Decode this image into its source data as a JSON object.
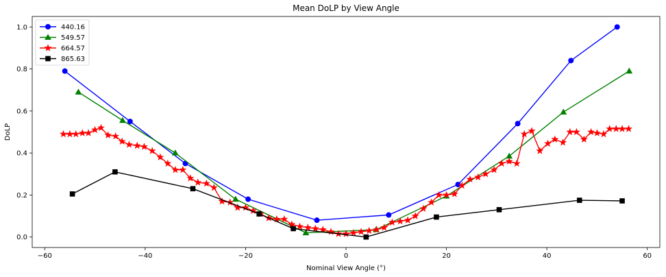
{
  "chart_data": {
    "type": "line",
    "title": "Mean DoLP by View Angle",
    "xlabel": "Nominal View Angle (°)",
    "ylabel": "DoLP",
    "xlim": [
      -62.5,
      62.5
    ],
    "ylim": [
      -0.05,
      1.05
    ],
    "xticks": [
      -60,
      -40,
      -20,
      0,
      20,
      40,
      60
    ],
    "yticks": [
      0.0,
      0.2,
      0.4,
      0.6,
      0.8,
      1.0
    ],
    "xtick_labels": [
      "−60",
      "−40",
      "−20",
      "0",
      "20",
      "40",
      "60"
    ],
    "ytick_labels": [
      "0.0",
      "0.2",
      "0.4",
      "0.6",
      "0.8",
      "1.0"
    ],
    "grid": false,
    "legend_position": "top-left",
    "series": [
      {
        "name": "440.16",
        "color": "#0000ff",
        "marker": "circle",
        "x": [
          -56.0,
          -43.0,
          -32.0,
          -19.5,
          -5.8,
          8.5,
          22.3,
          34.2,
          44.8,
          54.0
        ],
        "y": [
          0.79,
          0.55,
          0.35,
          0.18,
          0.08,
          0.105,
          0.25,
          0.54,
          0.84,
          1.0
        ]
      },
      {
        "name": "549.57",
        "color": "#008000",
        "marker": "triangle",
        "x": [
          -53.3,
          -44.5,
          -34.0,
          -22.0,
          -8.0,
          6.0,
          20.0,
          32.5,
          43.3,
          56.4
        ],
        "y": [
          0.69,
          0.555,
          0.4,
          0.18,
          0.02,
          0.035,
          0.195,
          0.385,
          0.595,
          0.79
        ]
      },
      {
        "name": "664.57",
        "color": "#ff0000",
        "marker": "star",
        "x": [
          -56.3,
          -55.0,
          -53.8,
          -52.5,
          -51.3,
          -50.0,
          -48.8,
          -47.4,
          -45.9,
          -44.6,
          -43.2,
          -41.6,
          -40.2,
          -38.6,
          -37.0,
          -35.5,
          -34.0,
          -32.5,
          -31.0,
          -29.5,
          -27.8,
          -26.3,
          -24.7,
          -23.1,
          -21.6,
          -20.0,
          -18.5,
          -17.0,
          -15.4,
          -13.8,
          -12.3,
          -10.8,
          -9.2,
          -7.6,
          -6.1,
          -4.6,
          -3.0,
          -1.5,
          0.0,
          1.5,
          3.0,
          4.6,
          6.1,
          7.6,
          9.2,
          10.8,
          12.3,
          13.8,
          15.4,
          17.0,
          18.5,
          20.0,
          21.6,
          23.1,
          24.7,
          26.3,
          27.8,
          29.5,
          31.0,
          32.5,
          34.0,
          35.5,
          37.0,
          38.6,
          40.2,
          41.6,
          43.2,
          44.6,
          45.9,
          47.4,
          48.8,
          50.0,
          51.3,
          52.5,
          53.8,
          55.0,
          56.3
        ],
        "y": [
          0.49,
          0.49,
          0.49,
          0.495,
          0.495,
          0.51,
          0.52,
          0.485,
          0.48,
          0.455,
          0.44,
          0.435,
          0.43,
          0.41,
          0.38,
          0.35,
          0.32,
          0.32,
          0.28,
          0.26,
          0.255,
          0.235,
          0.17,
          0.165,
          0.14,
          0.14,
          0.125,
          0.11,
          0.09,
          0.085,
          0.085,
          0.06,
          0.05,
          0.045,
          0.04,
          0.035,
          0.025,
          0.015,
          0.015,
          0.02,
          0.025,
          0.03,
          0.035,
          0.045,
          0.07,
          0.075,
          0.08,
          0.1,
          0.135,
          0.165,
          0.2,
          0.2,
          0.205,
          0.245,
          0.275,
          0.285,
          0.3,
          0.32,
          0.35,
          0.36,
          0.35,
          0.49,
          0.505,
          0.41,
          0.445,
          0.465,
          0.45,
          0.5,
          0.5,
          0.465,
          0.5,
          0.495,
          0.49,
          0.515,
          0.515,
          0.515,
          0.515
        ]
      },
      {
        "name": "865.63",
        "color": "#000000",
        "marker": "square",
        "x": [
          -54.5,
          -46.0,
          -30.5,
          -17.3,
          -10.5,
          4.0,
          18.0,
          30.5,
          46.5,
          55.0
        ],
        "y": [
          0.205,
          0.31,
          0.23,
          0.11,
          0.04,
          0.0,
          0.095,
          0.13,
          0.175,
          0.172
        ]
      }
    ]
  }
}
